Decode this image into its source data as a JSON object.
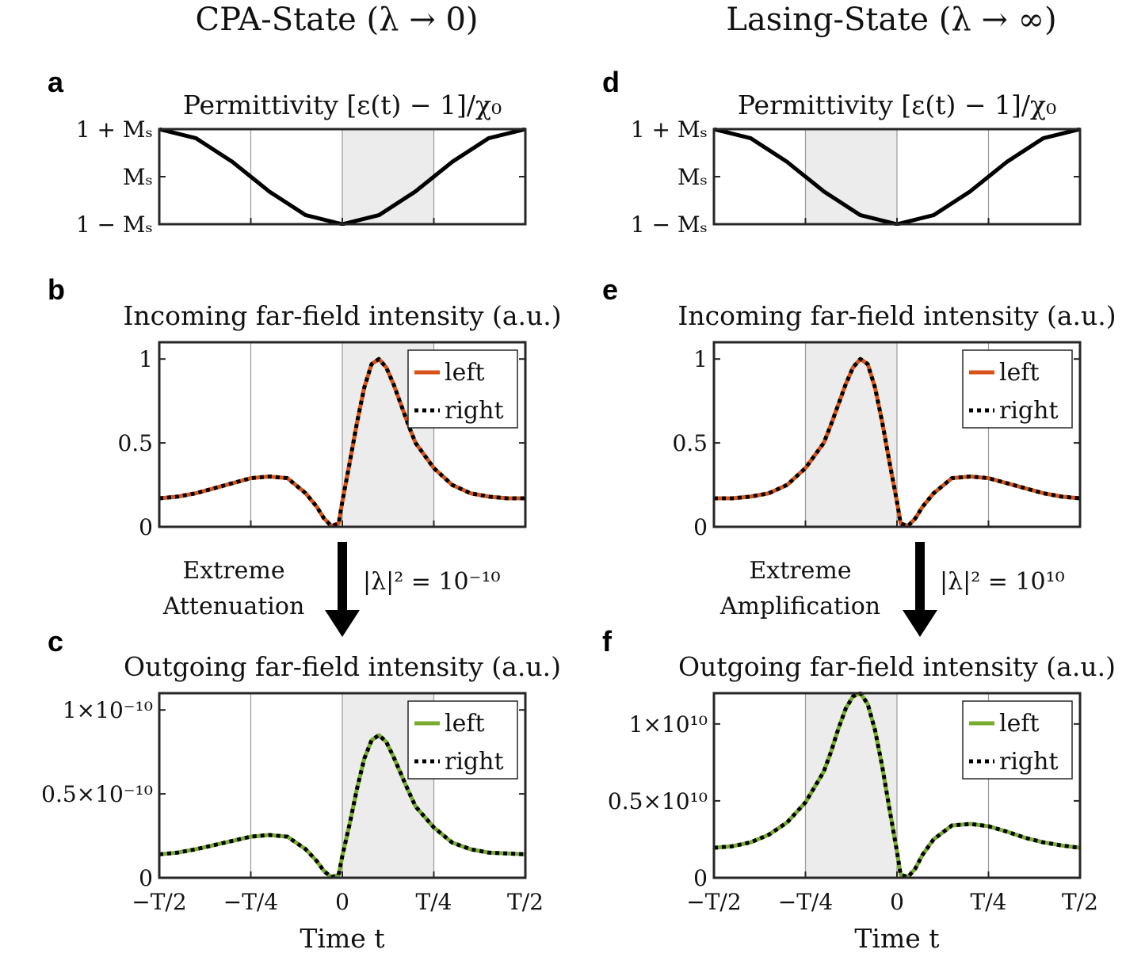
{
  "columns": [
    {
      "title": "CPA-State (λ → 0)",
      "transition": {
        "label_lines": [
          "Extreme",
          "Attenuation"
        ],
        "equation": "|λ|² = 10⁻¹⁰"
      }
    },
    {
      "title": "Lasing-State (λ → ∞)",
      "transition": {
        "label_lines": [
          "Extreme",
          "Amplification"
        ],
        "equation": "|λ|² = 10¹⁰"
      }
    }
  ],
  "xaxis": {
    "label": "Time t",
    "ticks": [
      -0.5,
      -0.25,
      0,
      0.25,
      0.5
    ],
    "tick_labels": [
      "−T/2",
      "−T/4",
      "0",
      "T/4",
      "T/2"
    ]
  },
  "chart_data": [
    {
      "panel": "a",
      "type": "line",
      "title": "Permittivity [ε(t) − 1]/χ₀",
      "ylim": [
        -1,
        1
      ],
      "yticks": [
        -1,
        0,
        1
      ],
      "ytick_labels": [
        "1 − Mₛ",
        "Mₛ",
        "1 + Mₛ"
      ],
      "shade": [
        0,
        0.25
      ],
      "series": [
        {
          "color": "#000000",
          "x": [
            -0.5,
            -0.4,
            -0.3,
            -0.25,
            -0.2,
            -0.1,
            0,
            0.1,
            0.2,
            0.25,
            0.3,
            0.4,
            0.5
          ],
          "y": [
            1,
            0.81,
            0.31,
            0,
            -0.31,
            -0.81,
            -1,
            -0.81,
            -0.31,
            0,
            0.31,
            0.81,
            1
          ]
        }
      ]
    },
    {
      "panel": "b",
      "type": "line",
      "title": "Incoming far-field intensity (a.u.)",
      "ylim": [
        0,
        1.1
      ],
      "yticks": [
        0,
        0.5,
        1
      ],
      "ytick_labels": [
        "0",
        "0.5",
        "1"
      ],
      "shade": [
        0,
        0.25
      ],
      "legend_position": "top-right",
      "series": [
        {
          "name": "left",
          "style": "solid",
          "color": "#d95319",
          "x": [
            -0.5,
            -0.45,
            -0.4,
            -0.35,
            -0.3,
            -0.25,
            -0.2,
            -0.15,
            -0.1,
            -0.07,
            -0.05,
            -0.03,
            -0.01,
            0,
            0.02,
            0.04,
            0.06,
            0.08,
            0.1,
            0.12,
            0.14,
            0.16,
            0.18,
            0.2,
            0.25,
            0.3,
            0.35,
            0.4,
            0.45,
            0.5
          ],
          "y": [
            0.17,
            0.18,
            0.2,
            0.23,
            0.26,
            0.29,
            0.3,
            0.29,
            0.2,
            0.12,
            0.05,
            0.005,
            0.02,
            0.15,
            0.38,
            0.62,
            0.83,
            0.97,
            1.0,
            0.95,
            0.85,
            0.73,
            0.61,
            0.5,
            0.35,
            0.25,
            0.2,
            0.18,
            0.17,
            0.17
          ]
        },
        {
          "name": "right",
          "style": "dotted",
          "color": "#000000",
          "x": [
            -0.5,
            -0.45,
            -0.4,
            -0.35,
            -0.3,
            -0.25,
            -0.2,
            -0.15,
            -0.1,
            -0.07,
            -0.05,
            -0.03,
            -0.01,
            0,
            0.02,
            0.04,
            0.06,
            0.08,
            0.1,
            0.12,
            0.14,
            0.16,
            0.18,
            0.2,
            0.25,
            0.3,
            0.35,
            0.4,
            0.45,
            0.5
          ],
          "y": [
            0.17,
            0.18,
            0.2,
            0.23,
            0.26,
            0.29,
            0.3,
            0.29,
            0.2,
            0.12,
            0.05,
            0.005,
            0.02,
            0.15,
            0.38,
            0.62,
            0.83,
            0.97,
            1.0,
            0.95,
            0.85,
            0.73,
            0.61,
            0.5,
            0.35,
            0.25,
            0.2,
            0.18,
            0.17,
            0.17
          ]
        }
      ]
    },
    {
      "panel": "c",
      "type": "line",
      "title": "Outgoing far-field intensity (a.u.)",
      "ylim": [
        0,
        1.1e-10
      ],
      "yticks": [
        0,
        5e-11,
        1e-10
      ],
      "ytick_labels": [
        "0",
        "0.5×10⁻¹⁰",
        "1×10⁻¹⁰"
      ],
      "shade": [
        0,
        0.25
      ],
      "legend_position": "top-right",
      "series": [
        {
          "name": "left",
          "style": "solid",
          "color": "#77ac30",
          "x": [
            -0.5,
            -0.45,
            -0.4,
            -0.35,
            -0.3,
            -0.25,
            -0.2,
            -0.15,
            -0.1,
            -0.07,
            -0.05,
            -0.03,
            -0.01,
            0,
            0.02,
            0.04,
            0.06,
            0.08,
            0.1,
            0.12,
            0.14,
            0.16,
            0.18,
            0.2,
            0.25,
            0.3,
            0.35,
            0.4,
            0.45,
            0.5
          ],
          "y": [
            1.4e-11,
            1.5e-11,
            1.7e-11,
            1.95e-11,
            2.2e-11,
            2.45e-11,
            2.55e-11,
            2.45e-11,
            1.7e-11,
            1e-11,
            4e-12,
            4e-13,
            1.7e-12,
            1.3e-11,
            3.2e-11,
            5.3e-11,
            7.1e-11,
            8.2e-11,
            8.5e-11,
            8.1e-11,
            7.2e-11,
            6.2e-11,
            5.2e-11,
            4.25e-11,
            3e-11,
            2.1e-11,
            1.7e-11,
            1.5e-11,
            1.45e-11,
            1.4e-11
          ]
        },
        {
          "name": "right",
          "style": "dotted",
          "color": "#000000",
          "x": [
            -0.5,
            -0.45,
            -0.4,
            -0.35,
            -0.3,
            -0.25,
            -0.2,
            -0.15,
            -0.1,
            -0.07,
            -0.05,
            -0.03,
            -0.01,
            0,
            0.02,
            0.04,
            0.06,
            0.08,
            0.1,
            0.12,
            0.14,
            0.16,
            0.18,
            0.2,
            0.25,
            0.3,
            0.35,
            0.4,
            0.45,
            0.5
          ],
          "y": [
            1.4e-11,
            1.5e-11,
            1.7e-11,
            1.95e-11,
            2.2e-11,
            2.45e-11,
            2.55e-11,
            2.45e-11,
            1.7e-11,
            1e-11,
            4e-12,
            4e-13,
            1.7e-12,
            1.3e-11,
            3.2e-11,
            5.3e-11,
            7.1e-11,
            8.2e-11,
            8.5e-11,
            8.1e-11,
            7.2e-11,
            6.2e-11,
            5.2e-11,
            4.25e-11,
            3e-11,
            2.1e-11,
            1.7e-11,
            1.5e-11,
            1.45e-11,
            1.4e-11
          ]
        }
      ]
    },
    {
      "panel": "d",
      "type": "line",
      "title": "Permittivity [ε(t) − 1]/χ₀",
      "ylim": [
        -1,
        1
      ],
      "yticks": [
        -1,
        0,
        1
      ],
      "ytick_labels": [
        "1 − Mₛ",
        "Mₛ",
        "1 + Mₛ"
      ],
      "shade": [
        -0.25,
        0
      ],
      "series": [
        {
          "color": "#000000",
          "x": [
            -0.5,
            -0.4,
            -0.3,
            -0.25,
            -0.2,
            -0.1,
            0,
            0.1,
            0.2,
            0.25,
            0.3,
            0.4,
            0.5
          ],
          "y": [
            1,
            0.81,
            0.31,
            0,
            -0.31,
            -0.81,
            -1,
            -0.81,
            -0.31,
            0,
            0.31,
            0.81,
            1
          ]
        }
      ]
    },
    {
      "panel": "e",
      "type": "line",
      "title": "Incoming far-field intensity (a.u.)",
      "ylim": [
        0,
        1.1
      ],
      "yticks": [
        0,
        0.5,
        1
      ],
      "ytick_labels": [
        "0",
        "0.5",
        "1"
      ],
      "shade": [
        -0.25,
        0
      ],
      "legend_position": "top-right",
      "series": [
        {
          "name": "left",
          "style": "solid",
          "color": "#d95319",
          "x": [
            -0.5,
            -0.45,
            -0.4,
            -0.35,
            -0.3,
            -0.25,
            -0.2,
            -0.18,
            -0.16,
            -0.14,
            -0.12,
            -0.1,
            -0.08,
            -0.06,
            -0.04,
            -0.02,
            0,
            0.01,
            0.03,
            0.05,
            0.07,
            0.1,
            0.15,
            0.2,
            0.25,
            0.3,
            0.35,
            0.4,
            0.45,
            0.5
          ],
          "y": [
            0.17,
            0.17,
            0.18,
            0.2,
            0.25,
            0.35,
            0.5,
            0.61,
            0.73,
            0.85,
            0.95,
            1.0,
            0.97,
            0.83,
            0.62,
            0.38,
            0.15,
            0.02,
            0.005,
            0.05,
            0.12,
            0.2,
            0.29,
            0.3,
            0.29,
            0.26,
            0.23,
            0.2,
            0.18,
            0.17
          ]
        },
        {
          "name": "right",
          "style": "dotted",
          "color": "#000000",
          "x": [
            -0.5,
            -0.45,
            -0.4,
            -0.35,
            -0.3,
            -0.25,
            -0.2,
            -0.18,
            -0.16,
            -0.14,
            -0.12,
            -0.1,
            -0.08,
            -0.06,
            -0.04,
            -0.02,
            0,
            0.01,
            0.03,
            0.05,
            0.07,
            0.1,
            0.15,
            0.2,
            0.25,
            0.3,
            0.35,
            0.4,
            0.45,
            0.5
          ],
          "y": [
            0.17,
            0.17,
            0.18,
            0.2,
            0.25,
            0.35,
            0.5,
            0.61,
            0.73,
            0.85,
            0.95,
            1.0,
            0.97,
            0.83,
            0.62,
            0.38,
            0.15,
            0.02,
            0.005,
            0.05,
            0.12,
            0.2,
            0.29,
            0.3,
            0.29,
            0.26,
            0.23,
            0.2,
            0.18,
            0.17
          ]
        }
      ]
    },
    {
      "panel": "f",
      "type": "line",
      "title": "Outgoing far-field intensity (a.u.)",
      "ylim": [
        0,
        12000000000.0
      ],
      "yticks": [
        0,
        5000000000.0,
        10000000000.0
      ],
      "ytick_labels": [
        "0",
        "0.5×10¹⁰",
        "1×10¹⁰"
      ],
      "shade": [
        -0.25,
        0
      ],
      "legend_position": "top-right",
      "series": [
        {
          "name": "left",
          "style": "solid",
          "color": "#77ac30",
          "x": [
            -0.5,
            -0.45,
            -0.4,
            -0.35,
            -0.3,
            -0.25,
            -0.2,
            -0.18,
            -0.16,
            -0.14,
            -0.12,
            -0.1,
            -0.08,
            -0.06,
            -0.04,
            -0.02,
            0,
            0.01,
            0.03,
            0.05,
            0.07,
            0.1,
            0.15,
            0.2,
            0.25,
            0.3,
            0.35,
            0.4,
            0.45,
            0.5
          ],
          "y": [
            1950000000.0,
            2050000000.0,
            2300000000.0,
            2800000000.0,
            3600000000.0,
            4900000000.0,
            6900000000.0,
            8200000000.0,
            9700000000.0,
            11000000000.0,
            11800000000.0,
            12000000000.0,
            11300000000.0,
            9600000000.0,
            7200000000.0,
            4400000000.0,
            1700000000.0,
            200000000.0,
            50000000.0,
            600000000.0,
            1500000000.0,
            2500000000.0,
            3400000000.0,
            3500000000.0,
            3350000000.0,
            3000000000.0,
            2600000000.0,
            2300000000.0,
            2100000000.0,
            1950000000.0
          ]
        },
        {
          "name": "right",
          "style": "dotted",
          "color": "#000000",
          "x": [
            -0.5,
            -0.45,
            -0.4,
            -0.35,
            -0.3,
            -0.25,
            -0.2,
            -0.18,
            -0.16,
            -0.14,
            -0.12,
            -0.1,
            -0.08,
            -0.06,
            -0.04,
            -0.02,
            0,
            0.01,
            0.03,
            0.05,
            0.07,
            0.1,
            0.15,
            0.2,
            0.25,
            0.3,
            0.35,
            0.4,
            0.45,
            0.5
          ],
          "y": [
            1950000000.0,
            2050000000.0,
            2300000000.0,
            2800000000.0,
            3600000000.0,
            4900000000.0,
            6900000000.0,
            8200000000.0,
            9700000000.0,
            11000000000.0,
            11800000000.0,
            12000000000.0,
            11300000000.0,
            9600000000.0,
            7200000000.0,
            4400000000.0,
            1700000000.0,
            200000000.0,
            50000000.0,
            600000000.0,
            1500000000.0,
            2500000000.0,
            3400000000.0,
            3500000000.0,
            3350000000.0,
            3000000000.0,
            2600000000.0,
            2300000000.0,
            2100000000.0,
            1950000000.0
          ]
        }
      ]
    }
  ]
}
